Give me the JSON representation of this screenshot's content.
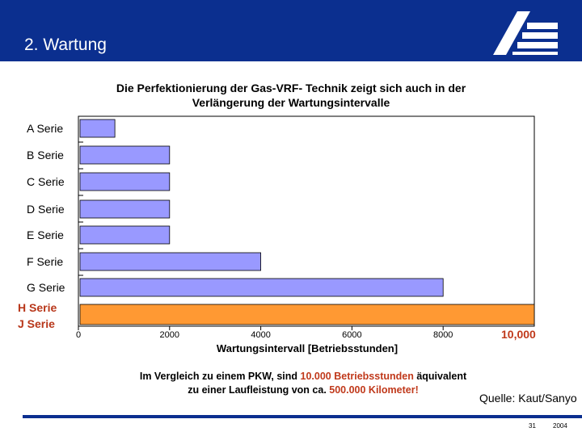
{
  "header": {
    "title": "2. Wartung"
  },
  "chart_data": {
    "type": "bar",
    "orientation": "horizontal",
    "title_line1": "Die Perfektionierung der Gas-VRF- Technik zeigt sich auch in der",
    "title_line2": "Verlängerung der Wartungsintervalle",
    "xlabel": "Wartungsintervall [Betriebsstunden]",
    "categories": [
      "A Serie",
      "B Serie",
      "C Serie",
      "D Serie",
      "E Serie",
      "F Serie",
      "G Serie",
      "H Serie",
      "J Serie"
    ],
    "values": [
      800,
      2000,
      2000,
      2000,
      2000,
      4000,
      8000,
      10000,
      10000
    ],
    "xlim": [
      0,
      10000
    ],
    "xticks": [
      "0",
      "2000",
      "4000",
      "6000",
      "8000"
    ],
    "highlight_value_label": "10,000",
    "bar_color": "#9999ff",
    "highlight_color": "#ff9933"
  },
  "note": {
    "line1_a": "Im Vergleich zu einem PKW, sind ",
    "line1_red": "10.000 Betriebsstunden",
    "line1_b": " äquivalent",
    "line2_a": "zu einer Laufleistung von ca. ",
    "line2_red": "500.000 Kilometer!",
    "line2_b": ""
  },
  "source": "Quelle: Kaut/Sanyo",
  "footer": {
    "page": "31",
    "year": "2004"
  },
  "colors": {
    "brand_blue": "#0b2f8f",
    "accent_red": "#c0391b"
  }
}
